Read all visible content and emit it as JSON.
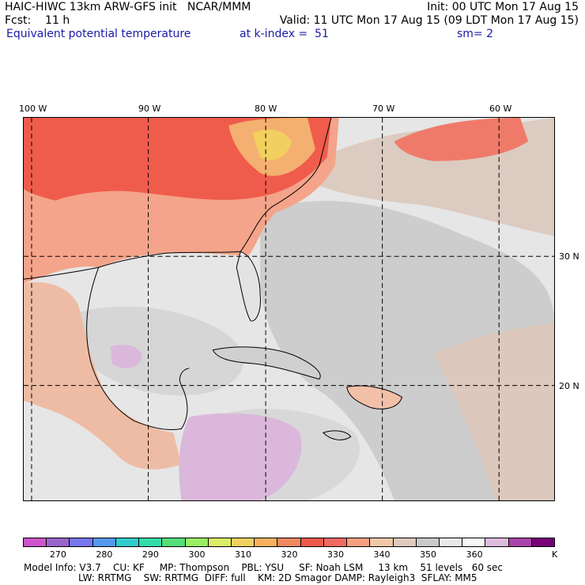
{
  "header": {
    "line1_left": "HAIC-HIWC 13km ARW-GFS init   NCAR/MMM",
    "line1_right": "Init: 00 UTC Mon 17 Aug 15",
    "line2_left": "Fcst:    11 h",
    "line2_right": "Valid: 11 UTC Mon 17 Aug 15 (09 LDT Mon 17 Aug 15)",
    "field_name": "Equivalent potential temperature",
    "level": "at k-index =  51",
    "smoothing": "sm= 2"
  },
  "map": {
    "longitude_labels": [
      "100 W",
      "90 W",
      "80 W",
      "70 W",
      "60 W"
    ],
    "latitude_labels": [
      "30 N",
      "20 N"
    ]
  },
  "colorbar": {
    "colors": [
      "#cc55cc",
      "#9966cc",
      "#7777ee",
      "#5599ee",
      "#33cccc",
      "#33ddaa",
      "#55dd77",
      "#99ee66",
      "#ddee66",
      "#f0d060",
      "#f8b060",
      "#f08860",
      "#f05a4a",
      "#f06a60",
      "#f4a080",
      "#f0c8a8",
      "#dfcabf",
      "#c9c9c9",
      "#e8e8e8",
      "#f8f8f8",
      "#ddbbdd",
      "#aa44aa",
      "#770077"
    ],
    "tick_labels": [
      "270",
      "280",
      "290",
      "300",
      "310",
      "320",
      "330",
      "340",
      "350",
      "360"
    ],
    "units": "K"
  },
  "footer": {
    "line1": "Model Info: V3.7    CU: KF     MP: Thompson    PBL: YSU     SF: Noah LSM     13 km    51 levels   60 sec",
    "line2": "LW: RRTMG    SW: RRTMG  DIFF: full    KM: 2D Smagor DAMP: Rayleigh3  SFLAY: MM5"
  }
}
